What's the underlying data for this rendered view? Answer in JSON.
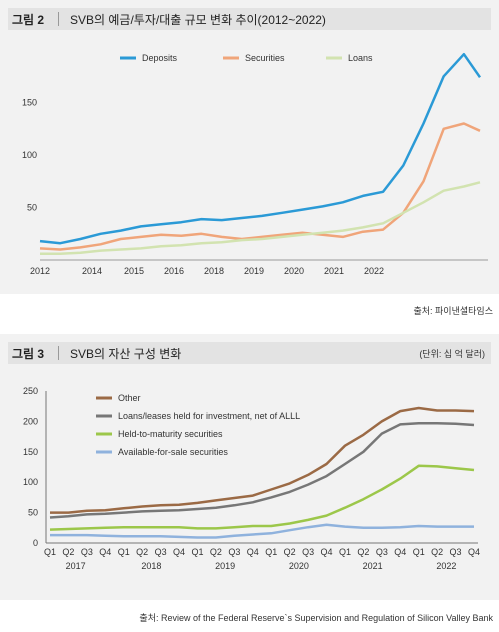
{
  "figure2": {
    "label": "그림 2",
    "title": "SVB의 예금/투자/대출 규모 변화 추이(2012~2022)",
    "source": "출처: 파이낸셜타임스"
  },
  "figure3": {
    "label": "그림 3",
    "title": "SVB의 자산 구성 변화",
    "unit": "(단위: 십 억 달러)",
    "source": "출처: Review of the Federal Reserve`s Supervision and Regulation of Silicon Valley Bank"
  },
  "chart_data": [
    {
      "type": "line",
      "title": "SVB의 예금/투자/대출 규모 변화 추이(2012~2022)",
      "x_ticks": [
        "2012",
        "2014",
        "2015",
        "2016",
        "2018",
        "2019",
        "2020",
        "2021",
        "2022"
      ],
      "ylim": [
        0,
        200
      ],
      "y_ticks": [
        50,
        100,
        150
      ],
      "legend_position": "top",
      "series": [
        {
          "name": "Deposits",
          "color": "#2b9ad6",
          "x": [
            2012,
            2012.5,
            2013,
            2013.5,
            2014,
            2014.5,
            2015,
            2015.5,
            2016,
            2016.5,
            2017,
            2017.5,
            2018,
            2018.5,
            2019,
            2019.5,
            2020,
            2020.5,
            2021,
            2021.5,
            2022,
            2022.5,
            2022.9
          ],
          "y": [
            18,
            16,
            20,
            25,
            28,
            32,
            34,
            36,
            39,
            38,
            40,
            42,
            45,
            48,
            51,
            55,
            61,
            65,
            90,
            130,
            175,
            196,
            174
          ]
        },
        {
          "name": "Securities",
          "color": "#f0a57a",
          "x": [
            2012,
            2012.5,
            2013,
            2013.5,
            2014,
            2014.5,
            2015,
            2015.5,
            2016,
            2016.5,
            2017,
            2017.5,
            2018,
            2018.5,
            2019,
            2019.5,
            2020,
            2020.5,
            2021,
            2021.5,
            2022,
            2022.5,
            2022.9
          ],
          "y": [
            11,
            10,
            12,
            15,
            20,
            22,
            24,
            23,
            25,
            22,
            20,
            22,
            24,
            26,
            24,
            22,
            27,
            29,
            45,
            75,
            125,
            130,
            123
          ]
        },
        {
          "name": "Loans",
          "color": "#d2e3b0",
          "x": [
            2012,
            2012.5,
            2013,
            2013.5,
            2014,
            2014.5,
            2015,
            2015.5,
            2016,
            2016.5,
            2017,
            2017.5,
            2018,
            2018.5,
            2019,
            2019.5,
            2020,
            2020.5,
            2021,
            2021.5,
            2022,
            2022.5,
            2022.9
          ],
          "y": [
            6,
            6,
            7,
            9,
            10,
            11,
            13,
            14,
            16,
            17,
            19,
            20,
            22,
            24,
            26,
            28,
            31,
            35,
            45,
            55,
            66,
            70,
            74
          ]
        }
      ]
    },
    {
      "type": "line",
      "title": "SVB의 자산 구성 변화",
      "ylim": [
        0,
        250
      ],
      "y_ticks": [
        0,
        50,
        100,
        150,
        200,
        250
      ],
      "categories": [
        "Q1",
        "Q2",
        "Q3",
        "Q4",
        "Q1",
        "Q2",
        "Q3",
        "Q4",
        "Q1",
        "Q2",
        "Q3",
        "Q4",
        "Q1",
        "Q2",
        "Q3",
        "Q4",
        "Q1",
        "Q2",
        "Q3",
        "Q4",
        "Q1",
        "Q2",
        "Q3",
        "Q4"
      ],
      "years": [
        "2017",
        "2018",
        "2019",
        "2020",
        "2021",
        "2022"
      ],
      "legend_position": "top-left",
      "series": [
        {
          "name": "Other",
          "color": "#9b6a45",
          "values": [
            50,
            50,
            53,
            54,
            57,
            60,
            62,
            63,
            66,
            70,
            74,
            78,
            88,
            98,
            112,
            130,
            160,
            178,
            200,
            217,
            222,
            218,
            218,
            217
          ]
        },
        {
          "name": "Loans/leases held for investment, net of ALLL",
          "color": "#777777",
          "values": [
            42,
            44,
            47,
            48,
            50,
            52,
            53,
            54,
            56,
            58,
            62,
            67,
            75,
            84,
            96,
            110,
            130,
            150,
            180,
            195,
            197,
            197,
            196,
            194
          ]
        },
        {
          "name": "Held-to-maturity securities",
          "color": "#9cc74a",
          "values": [
            22,
            23,
            24,
            25,
            26,
            26,
            26,
            26,
            24,
            24,
            26,
            28,
            28,
            32,
            38,
            45,
            58,
            72,
            88,
            106,
            127,
            126,
            123,
            120
          ]
        },
        {
          "name": "Available-for-sale securities",
          "color": "#8fb2dd",
          "values": [
            13,
            13,
            13,
            12,
            11,
            11,
            11,
            10,
            9,
            9,
            12,
            14,
            16,
            21,
            26,
            30,
            27,
            25,
            25,
            26,
            28,
            27,
            27,
            27
          ]
        }
      ]
    }
  ]
}
